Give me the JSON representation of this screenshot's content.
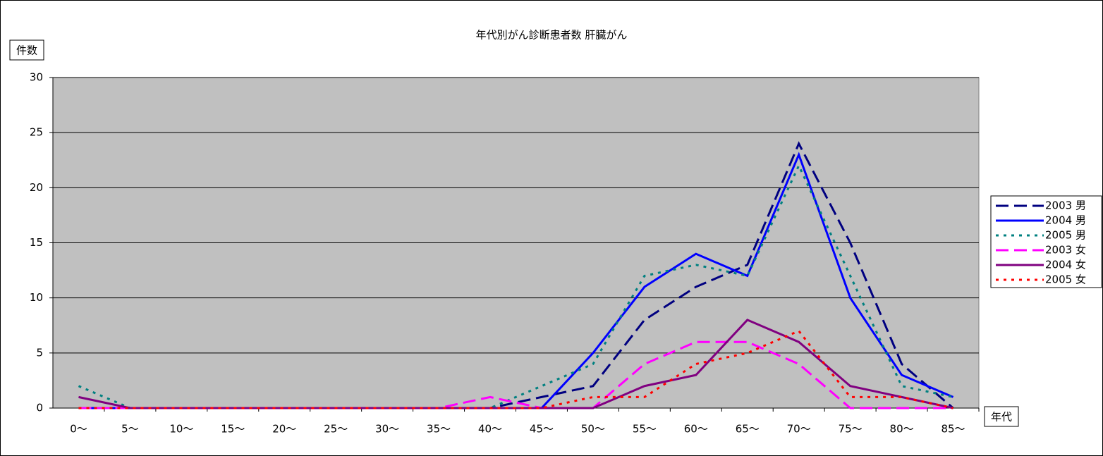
{
  "chart_data": {
    "type": "line",
    "title": "年代別がん診断患者数 肝臓がん",
    "y_label": "件数",
    "x_label": "年代",
    "categories": [
      "0～",
      "5～",
      "10～",
      "15～",
      "20～",
      "25～",
      "30～",
      "35～",
      "40～",
      "45～",
      "50～",
      "55～",
      "60～",
      "65～",
      "70～",
      "75～",
      "80～",
      "85～"
    ],
    "series": [
      {
        "name": "2003 男",
        "color": "#000080",
        "dash": "dashed",
        "values": [
          0,
          0,
          0,
          0,
          0,
          0,
          0,
          0,
          0,
          1,
          2,
          8,
          11,
          13,
          24,
          15,
          4,
          0
        ]
      },
      {
        "name": "2004 男",
        "color": "#0000ff",
        "dash": "solid",
        "values": [
          0,
          0,
          0,
          0,
          0,
          0,
          0,
          0,
          0,
          0,
          5,
          11,
          14,
          12,
          23,
          10,
          3,
          1
        ]
      },
      {
        "name": "2005 男",
        "color": "#008080",
        "dash": "dotted",
        "values": [
          2,
          0,
          0,
          0,
          0,
          0,
          0,
          0,
          0,
          2,
          4,
          12,
          13,
          12,
          22,
          12,
          2,
          1
        ]
      },
      {
        "name": "2003 女",
        "color": "#ff00ff",
        "dash": "dashed",
        "values": [
          0,
          0,
          0,
          0,
          0,
          0,
          0,
          0,
          1,
          0,
          0,
          4,
          6,
          6,
          4,
          0,
          0,
          0
        ]
      },
      {
        "name": "2004 女",
        "color": "#800080",
        "dash": "solid",
        "values": [
          1,
          0,
          0,
          0,
          0,
          0,
          0,
          0,
          0,
          0,
          0,
          2,
          3,
          8,
          6,
          2,
          1,
          0
        ]
      },
      {
        "name": "2005 女",
        "color": "#ff0000",
        "dash": "dotted",
        "values": [
          0,
          0,
          0,
          0,
          0,
          0,
          0,
          0,
          0,
          0,
          1,
          1,
          4,
          5,
          7,
          1,
          1,
          0
        ]
      }
    ],
    "ylim": [
      0,
      30
    ],
    "yticks": [
      0,
      5,
      10,
      15,
      20,
      25,
      30
    ],
    "grid": true,
    "legend": "right"
  }
}
